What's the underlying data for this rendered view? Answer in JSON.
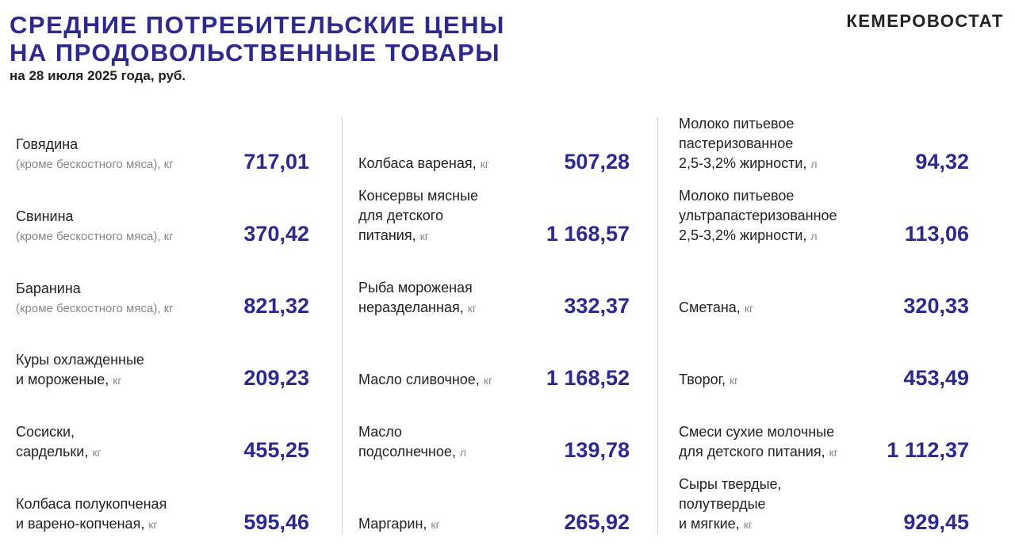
{
  "header": {
    "title_line1": "СРЕДНИЕ ПОТРЕБИТЕЛЬСКИЕ ЦЕНЫ",
    "title_line2": "НА ПРОДОВОЛЬСТВЕННЫЕ ТОВАРЫ",
    "subtitle": "на 28 июля 2025 года, руб.",
    "brand": "КЕМЕРОВОСТАТ"
  },
  "colors": {
    "accent": "#2e2a8c",
    "text": "#222222",
    "muted": "#888888"
  },
  "columns": [
    [
      {
        "lines": [
          "Говядина"
        ],
        "sub": "(кроме бескостного мяса), кг",
        "unit": "",
        "price": "717,01"
      },
      {
        "lines": [
          "Свинина"
        ],
        "sub": "(кроме бескостного мяса), кг",
        "unit": "",
        "price": "370,42"
      },
      {
        "lines": [
          "Баранина"
        ],
        "sub": "(кроме бескостного мяса), кг",
        "unit": "",
        "price": "821,32"
      },
      {
        "lines": [
          "Куры охлажденные",
          "и мороженые,"
        ],
        "sub": "",
        "unit": "кг",
        "price": "209,23"
      },
      {
        "lines": [
          "Сосиски,",
          "сардельки,"
        ],
        "sub": "",
        "unit": "кг",
        "price": "455,25"
      },
      {
        "lines": [
          "Колбаса полукопченая",
          "и варено-копченая,"
        ],
        "sub": "",
        "unit": "кг",
        "price": "595,46"
      }
    ],
    [
      {
        "lines": [
          "Колбаса вареная,"
        ],
        "sub": "",
        "unit": "кг",
        "price": "507,28"
      },
      {
        "lines": [
          "Консервы мясные",
          "для детского",
          "питания,"
        ],
        "sub": "",
        "unit": "кг",
        "price": "1 168,57"
      },
      {
        "lines": [
          "Рыба мороженая",
          "неразделанная,"
        ],
        "sub": "",
        "unit": "кг",
        "price": "332,37"
      },
      {
        "lines": [
          "Масло сливочное,"
        ],
        "sub": "",
        "unit": "кг",
        "price": "1 168,52"
      },
      {
        "lines": [
          "Масло",
          "подсолнечное,"
        ],
        "sub": "",
        "unit": "л",
        "price": "139,78"
      },
      {
        "lines": [
          "Маргарин,"
        ],
        "sub": "",
        "unit": "кг",
        "price": "265,92"
      }
    ],
    [
      {
        "lines": [
          "Молоко питьевое",
          "пастеризованное",
          "2,5-3,2% жирности,"
        ],
        "sub": "",
        "unit": "л",
        "price": "94,32"
      },
      {
        "lines": [
          "Молоко питьевое",
          "ультрапастеризованное",
          "2,5-3,2% жирности,"
        ],
        "sub": "",
        "unit": "л",
        "price": "113,06"
      },
      {
        "lines": [
          "Сметана,"
        ],
        "sub": "",
        "unit": "кг",
        "price": "320,33"
      },
      {
        "lines": [
          "Творог,"
        ],
        "sub": "",
        "unit": "кг",
        "price": "453,49"
      },
      {
        "lines": [
          "Смеси сухие молочные",
          "для детского питания,"
        ],
        "sub": "",
        "unit": "кг",
        "price": "1 112,37"
      },
      {
        "lines": [
          "Сыры твердые,",
          "полутвердые",
          "и мягкие,"
        ],
        "sub": "",
        "unit": "кг",
        "price": "929,45"
      }
    ]
  ]
}
